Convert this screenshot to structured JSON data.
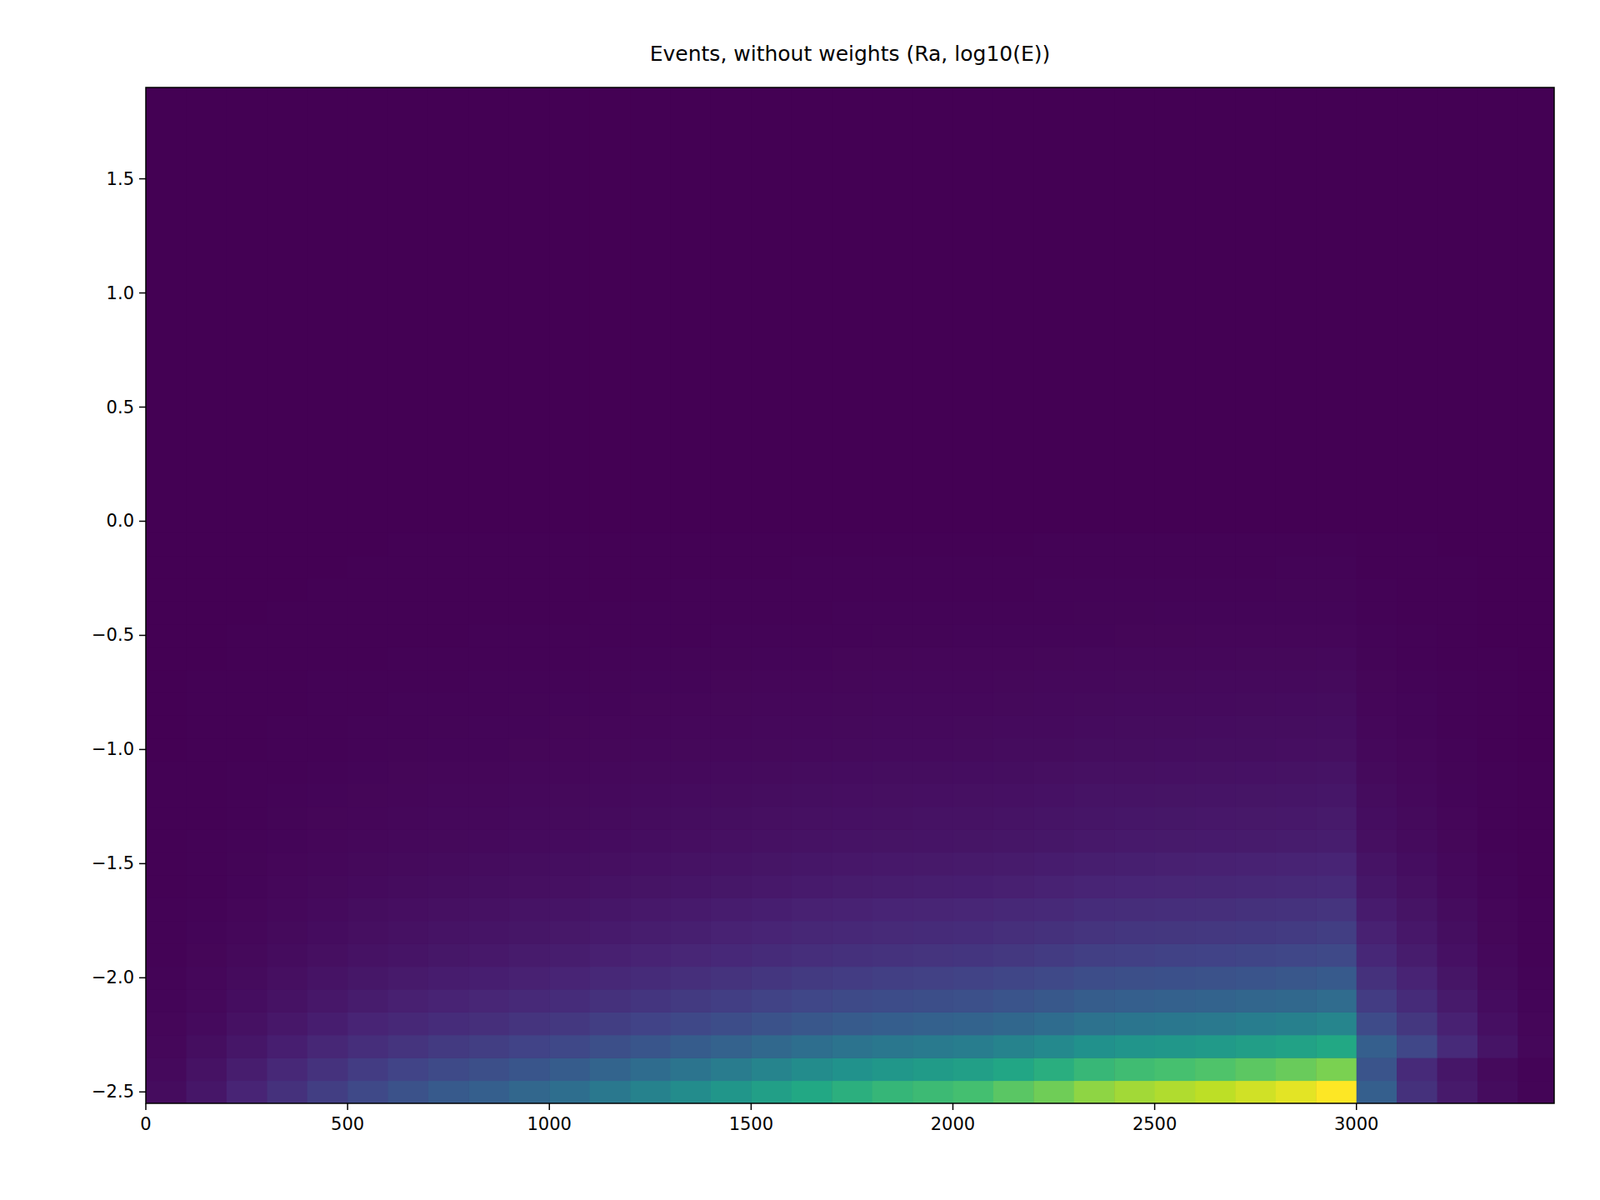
{
  "chart_data": {
    "type": "heatmap",
    "title": "Events, without weights (Ra, log10(E))",
    "xlim": [
      0,
      3490
    ],
    "ylim": [
      -2.55,
      1.9
    ],
    "xticks": [
      0,
      500,
      1000,
      1500,
      2000,
      2500,
      3000
    ],
    "yticks": [
      {
        "value": -2.5,
        "label": "−2.5"
      },
      {
        "value": -2.0,
        "label": "−2.0"
      },
      {
        "value": -1.5,
        "label": "−1.5"
      },
      {
        "value": -1.0,
        "label": "−1.0"
      },
      {
        "value": -0.5,
        "label": "−0.5"
      },
      {
        "value": 0.0,
        "label": "0.0"
      },
      0.5,
      {
        "value": 1.0,
        "label": "1.0"
      },
      1.5
    ],
    "x_bins": [
      0,
      100,
      200,
      300,
      400,
      500,
      600,
      700,
      800,
      900,
      1000,
      1100,
      1200,
      1300,
      1400,
      1500,
      1600,
      1700,
      1800,
      1900,
      2000,
      2100,
      2200,
      2300,
      2400,
      2500,
      2600,
      2700,
      2800,
      2900,
      3000,
      3100,
      3200,
      3300,
      3400,
      3500
    ],
    "y_bins": [
      -2.55,
      -2.45,
      -2.35,
      -2.25,
      -2.15,
      -2.05,
      -1.95,
      -1.85,
      -1.75,
      -1.65,
      -1.55,
      -1.45,
      -1.35,
      -1.25,
      -1.15,
      -1.05,
      -0.95,
      -0.85,
      -0.75,
      -0.65,
      -0.55,
      -0.45,
      -0.35,
      -0.25,
      -0.15,
      -0.05,
      1.95
    ],
    "cells": [
      [
        30,
        60,
        100,
        140,
        180,
        220,
        250,
        280,
        300,
        330,
        360,
        400,
        440,
        480,
        520,
        560,
        600,
        630,
        660,
        680,
        700,
        740,
        780,
        830,
        860,
        880,
        900,
        930,
        960,
        1000,
        300,
        140,
        70,
        30,
        10
      ],
      [
        24,
        48,
        80,
        112,
        144,
        176,
        200,
        224,
        240,
        264,
        288,
        320,
        352,
        384,
        416,
        448,
        480,
        504,
        528,
        544,
        560,
        592,
        624,
        664,
        688,
        704,
        720,
        744,
        768,
        800,
        260,
        120,
        60,
        25,
        8
      ],
      [
        18,
        36,
        60,
        84,
        108,
        132,
        150,
        168,
        180,
        198,
        216,
        240,
        264,
        288,
        312,
        336,
        360,
        378,
        396,
        408,
        420,
        444,
        468,
        498,
        516,
        528,
        540,
        558,
        576,
        600,
        300,
        210,
        120,
        54,
        18
      ],
      [
        14,
        27,
        45,
        63,
        81,
        99,
        113,
        126,
        135,
        149,
        162,
        180,
        198,
        216,
        234,
        252,
        270,
        284,
        297,
        306,
        315,
        333,
        351,
        374,
        387,
        396,
        405,
        419,
        432,
        450,
        225,
        158,
        90,
        41,
        14
      ],
      [
        11,
        21,
        35,
        49,
        63,
        77,
        88,
        98,
        105,
        116,
        126,
        140,
        154,
        168,
        182,
        196,
        210,
        221,
        231,
        238,
        245,
        259,
        273,
        291,
        301,
        308,
        315,
        326,
        336,
        350,
        175,
        123,
        70,
        32,
        11
      ],
      [
        8,
        17,
        28,
        39,
        50,
        62,
        70,
        78,
        84,
        92,
        101,
        112,
        123,
        134,
        146,
        157,
        168,
        176,
        185,
        190,
        196,
        207,
        218,
        232,
        241,
        246,
        252,
        260,
        269,
        280,
        140,
        98,
        56,
        25,
        8
      ],
      [
        7,
        13,
        22,
        31,
        40,
        48,
        55,
        62,
        66,
        73,
        79,
        88,
        97,
        106,
        114,
        123,
        132,
        139,
        145,
        150,
        154,
        163,
        172,
        183,
        189,
        194,
        198,
        205,
        211,
        220,
        110,
        77,
        44,
        20,
        7
      ],
      [
        5,
        11,
        18,
        25,
        32,
        40,
        45,
        50,
        54,
        59,
        65,
        72,
        79,
        86,
        94,
        101,
        108,
        113,
        119,
        122,
        126,
        133,
        140,
        149,
        155,
        158,
        162,
        167,
        173,
        180,
        90,
        63,
        36,
        16,
        5
      ],
      [
        5,
        9,
        15,
        21,
        27,
        33,
        38,
        42,
        45,
        50,
        54,
        60,
        66,
        72,
        78,
        84,
        90,
        95,
        99,
        102,
        105,
        111,
        117,
        125,
        129,
        132,
        135,
        140,
        144,
        150,
        75,
        53,
        30,
        14,
        5
      ],
      [
        4,
        7,
        12,
        17,
        22,
        26,
        30,
        34,
        36,
        40,
        43,
        48,
        53,
        58,
        62,
        67,
        72,
        76,
        79,
        82,
        84,
        89,
        94,
        100,
        103,
        106,
        108,
        112,
        115,
        120,
        60,
        42,
        24,
        11,
        4
      ],
      [
        3,
        6,
        10,
        14,
        18,
        22,
        25,
        28,
        30,
        33,
        36,
        40,
        44,
        48,
        52,
        56,
        60,
        63,
        66,
        68,
        70,
        74,
        78,
        83,
        86,
        88,
        90,
        93,
        96,
        100,
        50,
        35,
        20,
        9,
        3
      ],
      [
        2,
        5,
        8,
        11,
        14,
        18,
        20,
        22,
        24,
        26,
        29,
        32,
        35,
        38,
        42,
        45,
        48,
        50,
        53,
        54,
        56,
        59,
        62,
        66,
        69,
        70,
        72,
        74,
        77,
        80,
        40,
        28,
        16,
        7,
        2
      ],
      [
        2,
        4,
        7,
        10,
        13,
        15,
        18,
        20,
        21,
        23,
        25,
        28,
        31,
        34,
        36,
        39,
        42,
        44,
        46,
        48,
        49,
        52,
        55,
        58,
        60,
        62,
        63,
        65,
        67,
        70,
        35,
        25,
        14,
        6,
        2
      ],
      [
        2,
        4,
        6,
        8,
        11,
        13,
        15,
        17,
        18,
        20,
        22,
        24,
        26,
        29,
        31,
        34,
        36,
        38,
        40,
        41,
        42,
        44,
        47,
        50,
        52,
        53,
        54,
        56,
        58,
        60,
        30,
        21,
        12,
        5,
        2
      ],
      [
        2,
        3,
        5,
        7,
        9,
        11,
        13,
        14,
        15,
        17,
        18,
        20,
        22,
        24,
        26,
        28,
        30,
        32,
        33,
        34,
        35,
        37,
        39,
        42,
        43,
        44,
        45,
        47,
        48,
        50,
        25,
        18,
        10,
        5,
        2
      ],
      [
        1,
        2,
        4,
        6,
        7,
        9,
        10,
        11,
        12,
        13,
        14,
        16,
        18,
        19,
        21,
        22,
        24,
        25,
        26,
        27,
        28,
        30,
        31,
        33,
        34,
        35,
        36,
        37,
        38,
        40,
        20,
        14,
        8,
        4,
        1
      ],
      [
        1,
        2,
        4,
        5,
        6,
        8,
        9,
        10,
        11,
        12,
        13,
        14,
        15,
        17,
        18,
        20,
        21,
        22,
        23,
        24,
        25,
        26,
        27,
        29,
        30,
        31,
        32,
        33,
        34,
        35,
        18,
        12,
        7,
        3,
        1
      ],
      [
        1,
        2,
        3,
        4,
        5,
        7,
        8,
        8,
        9,
        10,
        11,
        12,
        13,
        14,
        16,
        17,
        18,
        19,
        20,
        20,
        21,
        22,
        23,
        25,
        26,
        26,
        27,
        28,
        29,
        30,
        15,
        11,
        6,
        3,
        1
      ],
      [
        1,
        2,
        3,
        4,
        5,
        6,
        6,
        7,
        8,
        8,
        9,
        10,
        11,
        12,
        13,
        14,
        15,
        16,
        17,
        17,
        18,
        19,
        20,
        21,
        22,
        22,
        23,
        23,
        24,
        25,
        13,
        9,
        5,
        2,
        1
      ],
      [
        1,
        1,
        2,
        3,
        4,
        4,
        5,
        6,
        6,
        7,
        7,
        8,
        9,
        10,
        10,
        11,
        12,
        13,
        13,
        14,
        14,
        15,
        16,
        17,
        17,
        18,
        18,
        19,
        19,
        20,
        10,
        7,
        4,
        2,
        1
      ],
      [
        0,
        1,
        2,
        2,
        3,
        3,
        4,
        4,
        5,
        5,
        5,
        6,
        7,
        7,
        8,
        8,
        9,
        9,
        10,
        10,
        11,
        11,
        12,
        12,
        13,
        13,
        14,
        14,
        14,
        15,
        8,
        5,
        3,
        1,
        0
      ],
      [
        0,
        1,
        1,
        2,
        2,
        3,
        3,
        3,
        4,
        4,
        4,
        5,
        5,
        6,
        6,
        7,
        7,
        8,
        8,
        8,
        8,
        9,
        9,
        10,
        10,
        11,
        11,
        11,
        12,
        12,
        6,
        4,
        2,
        1,
        0
      ],
      [
        0,
        1,
        1,
        1,
        2,
        2,
        3,
        3,
        3,
        3,
        4,
        4,
        4,
        5,
        5,
        6,
        6,
        6,
        7,
        7,
        7,
        7,
        8,
        8,
        9,
        9,
        9,
        9,
        10,
        10,
        5,
        4,
        2,
        1,
        0
      ],
      [
        0,
        0,
        1,
        1,
        1,
        2,
        2,
        2,
        2,
        3,
        3,
        3,
        4,
        4,
        4,
        4,
        5,
        5,
        5,
        5,
        6,
        6,
        6,
        7,
        7,
        7,
        7,
        7,
        8,
        8,
        4,
        3,
        2,
        1,
        0
      ],
      [
        0,
        0,
        1,
        1,
        1,
        1,
        2,
        2,
        2,
        2,
        2,
        2,
        3,
        3,
        3,
        3,
        4,
        4,
        4,
        4,
        4,
        4,
        5,
        5,
        5,
        5,
        5,
        6,
        6,
        6,
        3,
        2,
        1,
        1,
        0
      ],
      [
        0,
        0,
        0,
        0,
        0,
        0,
        0,
        0,
        0,
        0,
        0,
        0,
        0,
        0,
        0,
        0,
        0,
        0,
        0,
        0,
        0,
        0,
        0,
        0,
        0,
        0,
        0,
        0,
        0,
        0,
        0,
        0,
        0,
        0,
        0
      ]
    ]
  }
}
